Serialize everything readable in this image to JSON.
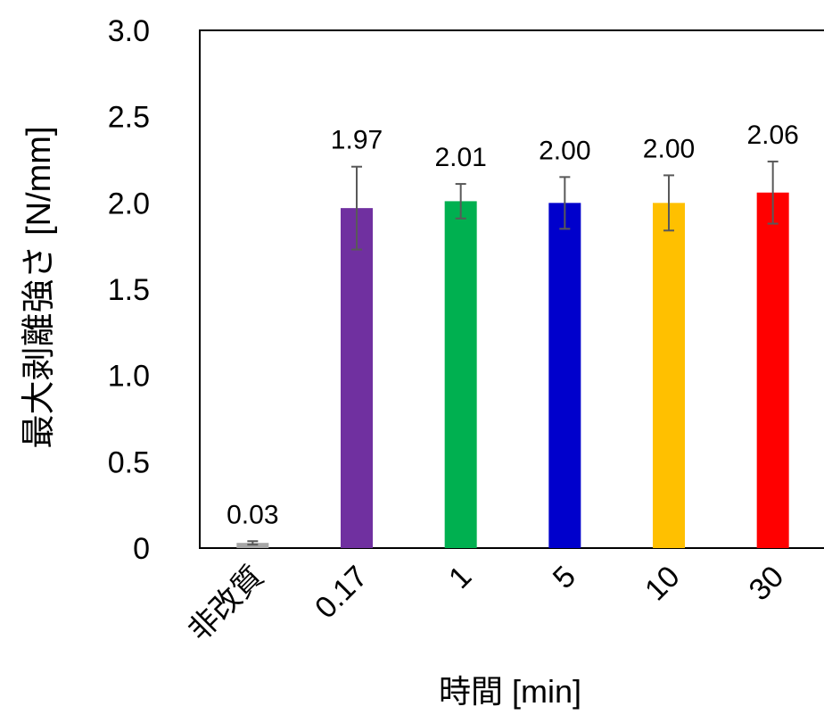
{
  "chart_data": {
    "type": "bar",
    "title": "",
    "xlabel": "時間 [min]",
    "ylabel": "最大剥離強さ [N/mm]",
    "ylim": [
      0,
      3.0
    ],
    "y_ticks": [
      "0",
      "0.5",
      "1.0",
      "1.5",
      "2.0",
      "2.5",
      "3.0"
    ],
    "y_tick_values": [
      0,
      0.5,
      1.0,
      1.5,
      2.0,
      2.5,
      3.0
    ],
    "categories": [
      "非改質",
      "0.17",
      "1",
      "5",
      "10",
      "30"
    ],
    "values": [
      0.03,
      1.97,
      2.01,
      2.0,
      2.0,
      2.06
    ],
    "value_labels": [
      "0.03",
      "1.97",
      "2.01",
      "2.00",
      "2.00",
      "2.06"
    ],
    "error": [
      0.01,
      0.24,
      0.1,
      0.15,
      0.16,
      0.18
    ],
    "colors": [
      "#a6a6a6",
      "#7030a0",
      "#00b050",
      "#0000cc",
      "#ffc000",
      "#ff0000"
    ],
    "error_bar_color": "#595959",
    "grid": false,
    "legend": "none"
  }
}
